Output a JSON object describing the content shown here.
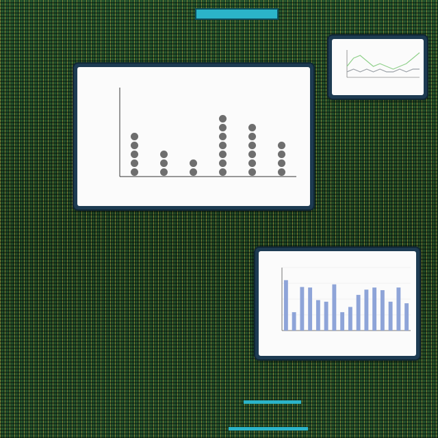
{
  "header": {
    "banner_text": ""
  },
  "colors": {
    "dot": "#6e6e6e",
    "bar": "#8ea4d8",
    "line_main": "#8fd08a",
    "line_secondary": "#9aa0a6",
    "panel_border": "#1d3b52",
    "accent": "#2bb4c9"
  },
  "chart_data": [
    {
      "type": "scatter",
      "title": "",
      "xlabel": "",
      "ylabel": "",
      "categories": [
        "",
        "",
        "",
        "",
        "",
        ""
      ],
      "values": [
        5,
        3,
        2,
        7,
        6,
        4
      ],
      "ylim": [
        0,
        10
      ],
      "yticks": [
        "",
        "",
        "",
        "",
        "",
        ""
      ],
      "grid": false,
      "legend": "none"
    },
    {
      "type": "line",
      "title": "",
      "xlabel": "",
      "ylabel": "",
      "x": [
        1,
        2,
        3,
        4,
        5,
        6,
        7,
        8,
        9,
        10,
        11,
        12
      ],
      "series": [
        {
          "values": [
            4,
            7,
            8,
            6,
            4,
            5,
            4,
            3,
            4,
            5,
            7,
            9
          ]
        },
        {
          "values": [
            2,
            3,
            2,
            3,
            2,
            3,
            2,
            2,
            3,
            2,
            3,
            3
          ]
        }
      ],
      "ylim": [
        0,
        10
      ],
      "grid": false,
      "legend": "none"
    },
    {
      "type": "bar",
      "title": "",
      "xlabel": "",
      "ylabel": "",
      "categories": [
        "",
        "",
        "",
        "",
        "",
        "",
        "",
        "",
        "",
        "",
        "",
        "",
        "",
        "",
        "",
        ""
      ],
      "values": [
        9.6,
        3.5,
        8.3,
        8.2,
        5.8,
        5.5,
        8.8,
        3.5,
        4.5,
        6.8,
        7.8,
        8.2,
        7.7,
        5.5,
        8.2,
        5.2
      ],
      "ylim": [
        0,
        12
      ],
      "yticks": [
        "",
        "",
        "",
        "",
        ""
      ],
      "grid": true,
      "legend": "none"
    }
  ]
}
